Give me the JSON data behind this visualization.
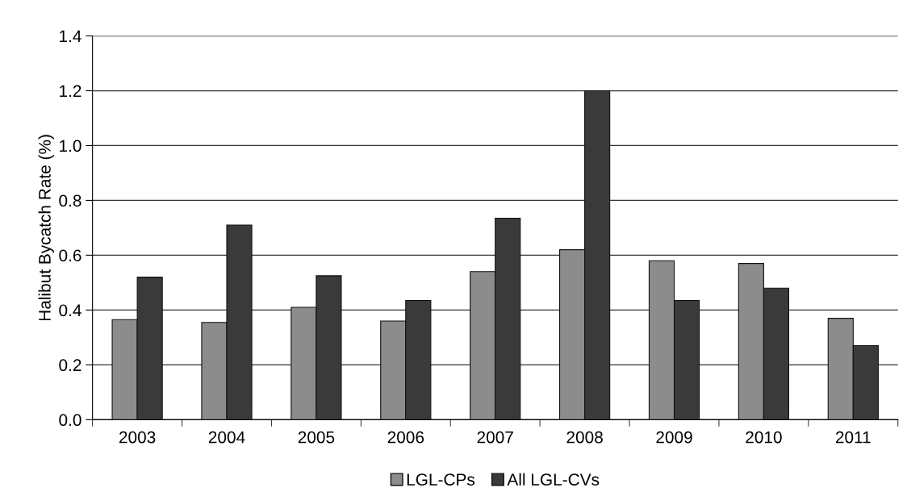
{
  "chart_data": {
    "type": "bar",
    "ylabel": "Halibut Bycatch Rate (%)",
    "categories": [
      "2003",
      "2004",
      "2005",
      "2006",
      "2007",
      "2008",
      "2009",
      "2010",
      "2011"
    ],
    "series": [
      {
        "name": "LGL-CPs",
        "color": "#8c8c8c",
        "values": [
          0.365,
          0.355,
          0.41,
          0.36,
          0.54,
          0.62,
          0.58,
          0.57,
          0.37
        ]
      },
      {
        "name": "All LGL-CVs",
        "color": "#3a3a3a",
        "values": [
          0.52,
          0.71,
          0.525,
          0.435,
          0.735,
          1.2,
          0.435,
          0.48,
          0.27
        ]
      }
    ],
    "ylim": [
      0,
      1.4
    ],
    "yticks": [
      {
        "value": 0,
        "label": "0.0"
      },
      0.2,
      0.4,
      0.6,
      0.8,
      {
        "value": 1,
        "label": "1.0"
      },
      1.2,
      1.4
    ],
    "grid": "y",
    "legend": "bottom"
  }
}
